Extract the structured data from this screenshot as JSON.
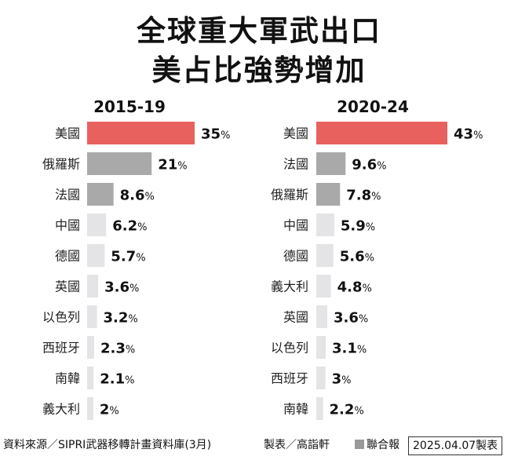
{
  "title_line1": "全球重大軍武出口",
  "title_line2": "美占比強勢增加",
  "footer": {
    "source": "資料來源／SIPRI武器移轉計畫資料庫(3月)",
    "maker": "製表／高詣軒",
    "brand": "聯合報",
    "date": "2025.04.07製表"
  },
  "colors": {
    "highlight": "#e8615e",
    "secondary": "#a9a9a9",
    "tertiary": "#e4e4e6"
  },
  "chart_data": [
    {
      "type": "bar",
      "orientation": "horizontal",
      "title": "2015-19",
      "unit": "%",
      "categories": [
        "美國",
        "俄羅斯",
        "法國",
        "中國",
        "德國",
        "英國",
        "以色列",
        "西班牙",
        "南韓",
        "義大利"
      ],
      "values": [
        35,
        21,
        8.6,
        6.2,
        5.7,
        3.6,
        3.2,
        2.3,
        2.1,
        2
      ],
      "labels": [
        "35",
        "21",
        "8.6",
        "6.2",
        "5.7",
        "3.6",
        "3.2",
        "2.3",
        "2.1",
        "2"
      ],
      "colors": [
        "#e8615e",
        "#a9a9a9",
        "#a9a9a9",
        "#e4e4e6",
        "#e4e4e6",
        "#e4e4e6",
        "#e4e4e6",
        "#e4e4e6",
        "#e4e4e6",
        "#e4e4e6"
      ]
    },
    {
      "type": "bar",
      "orientation": "horizontal",
      "title": "2020-24",
      "unit": "%",
      "categories": [
        "美國",
        "法國",
        "俄羅斯",
        "中國",
        "德國",
        "義大利",
        "英國",
        "以色列",
        "西班牙",
        "南韓"
      ],
      "values": [
        43,
        9.6,
        7.8,
        5.9,
        5.6,
        4.8,
        3.6,
        3.1,
        3,
        2.2
      ],
      "labels": [
        "43",
        "9.6",
        "7.8",
        "5.9",
        "5.6",
        "4.8",
        "3.6",
        "3.1",
        "3",
        "2.2"
      ],
      "colors": [
        "#e8615e",
        "#a9a9a9",
        "#a9a9a9",
        "#e4e4e6",
        "#e4e4e6",
        "#e4e4e6",
        "#e4e4e6",
        "#e4e4e6",
        "#e4e4e6",
        "#e4e4e6"
      ]
    }
  ]
}
